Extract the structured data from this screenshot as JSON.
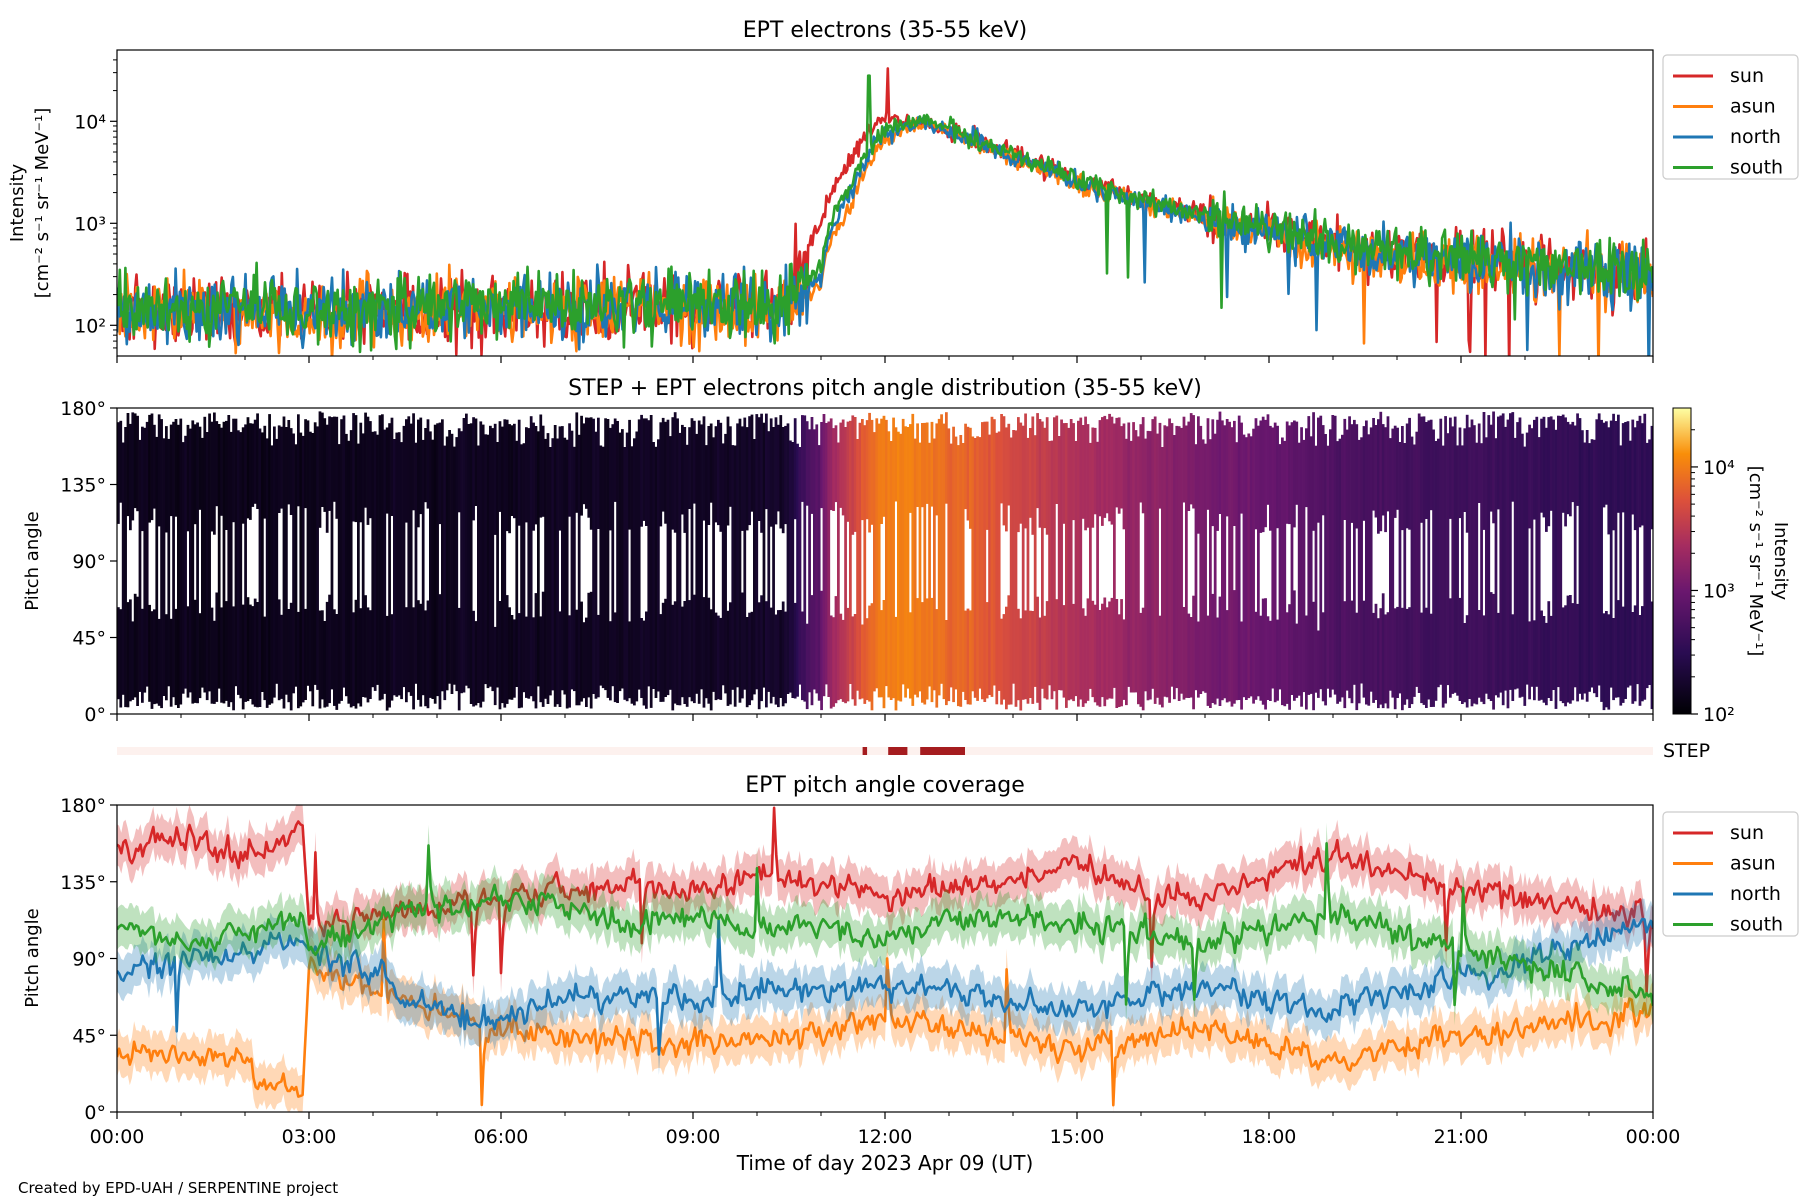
{
  "figure": {
    "x_axis_label": "Time of day 2023 Apr 09 (UT)",
    "x_tick_labels": [
      "00:00",
      "03:00",
      "06:00",
      "09:00",
      "12:00",
      "15:00",
      "18:00",
      "21:00",
      "00:00"
    ],
    "credit": "Created by EPD-UAH / SERPENTINE project"
  },
  "colors": {
    "sun": "#d62728",
    "asun": "#ff7f0e",
    "north": "#1f77b4",
    "south": "#2ca02c",
    "step_strip_bg": "#fdf1ee",
    "step_strip_mark": "#a51c1f"
  },
  "chart_data": [
    {
      "type": "line",
      "title": "EPT electrons (35-55 keV)",
      "ylabel_lines": [
        "Intensity",
        "[cm⁻² s⁻¹ sr⁻¹ MeV⁻¹]"
      ],
      "yscale": "log",
      "ylim": [
        50,
        50000
      ],
      "y_tick_labels": [
        "10²",
        "10³",
        "10⁴"
      ],
      "y_tick_values": [
        100,
        1000,
        10000
      ],
      "x_range_hours": [
        0,
        24
      ],
      "legend_position": "upper right, outside",
      "legend": [
        "sun",
        "asun",
        "north",
        "south"
      ],
      "series_profile": {
        "x_hours": [
          0,
          3,
          6,
          9,
          10.5,
          11,
          11.5,
          12,
          12.5,
          13,
          14,
          15,
          16,
          17,
          18,
          19,
          20,
          21,
          22,
          23,
          24
        ],
        "sun": [
          140,
          140,
          150,
          160,
          180,
          900,
          4500,
          11000,
          10000,
          8000,
          4500,
          2600,
          1700,
          1200,
          900,
          600,
          500,
          450,
          400,
          350,
          320
        ],
        "asun": [
          130,
          130,
          140,
          150,
          150,
          250,
          1500,
          6500,
          9500,
          8000,
          4200,
          2400,
          1600,
          1100,
          800,
          550,
          450,
          420,
          380,
          340,
          300
        ],
        "north": [
          140,
          140,
          150,
          150,
          150,
          300,
          2000,
          7500,
          9500,
          8000,
          4300,
          2500,
          1600,
          1100,
          800,
          550,
          450,
          420,
          380,
          340,
          320
        ],
        "south": [
          150,
          150,
          160,
          160,
          170,
          350,
          2500,
          8000,
          10500,
          8500,
          4500,
          2700,
          1700,
          1200,
          900,
          600,
          520,
          480,
          430,
          380,
          360
        ]
      },
      "spikes": [
        {
          "series": "south",
          "x_hours": 11.75,
          "value": 28000
        },
        {
          "series": "sun",
          "x_hours": 12.05,
          "value": 33000
        }
      ]
    },
    {
      "type": "heatmap",
      "title": "STEP + EPT electrons pitch angle distribution (35-55 keV)",
      "ylabel": "Pitch angle",
      "ylim": [
        0,
        180
      ],
      "y_tick_labels": [
        "0°",
        "45°",
        "90°",
        "135°",
        "180°"
      ],
      "y_tick_values": [
        0,
        45,
        90,
        135,
        180
      ],
      "colorbar": {
        "label_lines": [
          "Intensity",
          "[cm⁻² s⁻¹ sr⁻¹ MeV⁻¹]"
        ],
        "scale": "log",
        "range": [
          100,
          30000
        ],
        "tick_labels": [
          "10²",
          "10³",
          "10⁴"
        ],
        "tick_values": [
          100,
          1000,
          10000
        ],
        "colormap": "inferno"
      }
    },
    {
      "type": "bar",
      "label": "STEP",
      "coverage_intervals_hours": [
        [
          11.65,
          11.72
        ],
        [
          12.05,
          12.35
        ],
        [
          12.55,
          13.25
        ]
      ]
    },
    {
      "type": "area",
      "title": "EPT pitch angle coverage",
      "ylabel": "Pitch angle",
      "ylim": [
        0,
        180
      ],
      "y_tick_labels": [
        "0°",
        "45°",
        "90°",
        "135°",
        "180°"
      ],
      "y_tick_values": [
        0,
        45,
        90,
        135,
        180
      ],
      "legend_position": "upper right, outside",
      "legend": [
        "sun",
        "asun",
        "north",
        "south"
      ],
      "series_profile": {
        "x_hours": [
          0,
          1,
          2,
          2.9,
          3,
          4,
          5,
          6,
          7,
          8,
          9,
          10,
          11,
          12,
          13,
          14,
          15,
          16,
          17,
          18,
          19,
          20,
          21,
          22,
          23,
          24
        ],
        "sun": [
          155,
          160,
          150,
          168,
          110,
          115,
          120,
          125,
          130,
          135,
          130,
          140,
          135,
          125,
          130,
          135,
          145,
          130,
          125,
          140,
          150,
          140,
          130,
          125,
          120,
          115
        ],
        "asun": [
          30,
          35,
          25,
          10,
          85,
          70,
          60,
          50,
          45,
          40,
          40,
          45,
          45,
          55,
          50,
          45,
          35,
          45,
          50,
          40,
          30,
          35,
          45,
          50,
          55,
          60
        ],
        "north": [
          80,
          90,
          95,
          100,
          95,
          80,
          60,
          55,
          65,
          70,
          65,
          70,
          70,
          75,
          70,
          65,
          60,
          70,
          75,
          65,
          60,
          70,
          80,
          90,
          100,
          110
        ],
        "south": [
          110,
          100,
          105,
          115,
          95,
          110,
          120,
          125,
          120,
          110,
          115,
          105,
          110,
          105,
          110,
          115,
          110,
          105,
          100,
          110,
          115,
          105,
          95,
          85,
          75,
          70
        ]
      },
      "band_halfwidth_deg": 12
    }
  ]
}
